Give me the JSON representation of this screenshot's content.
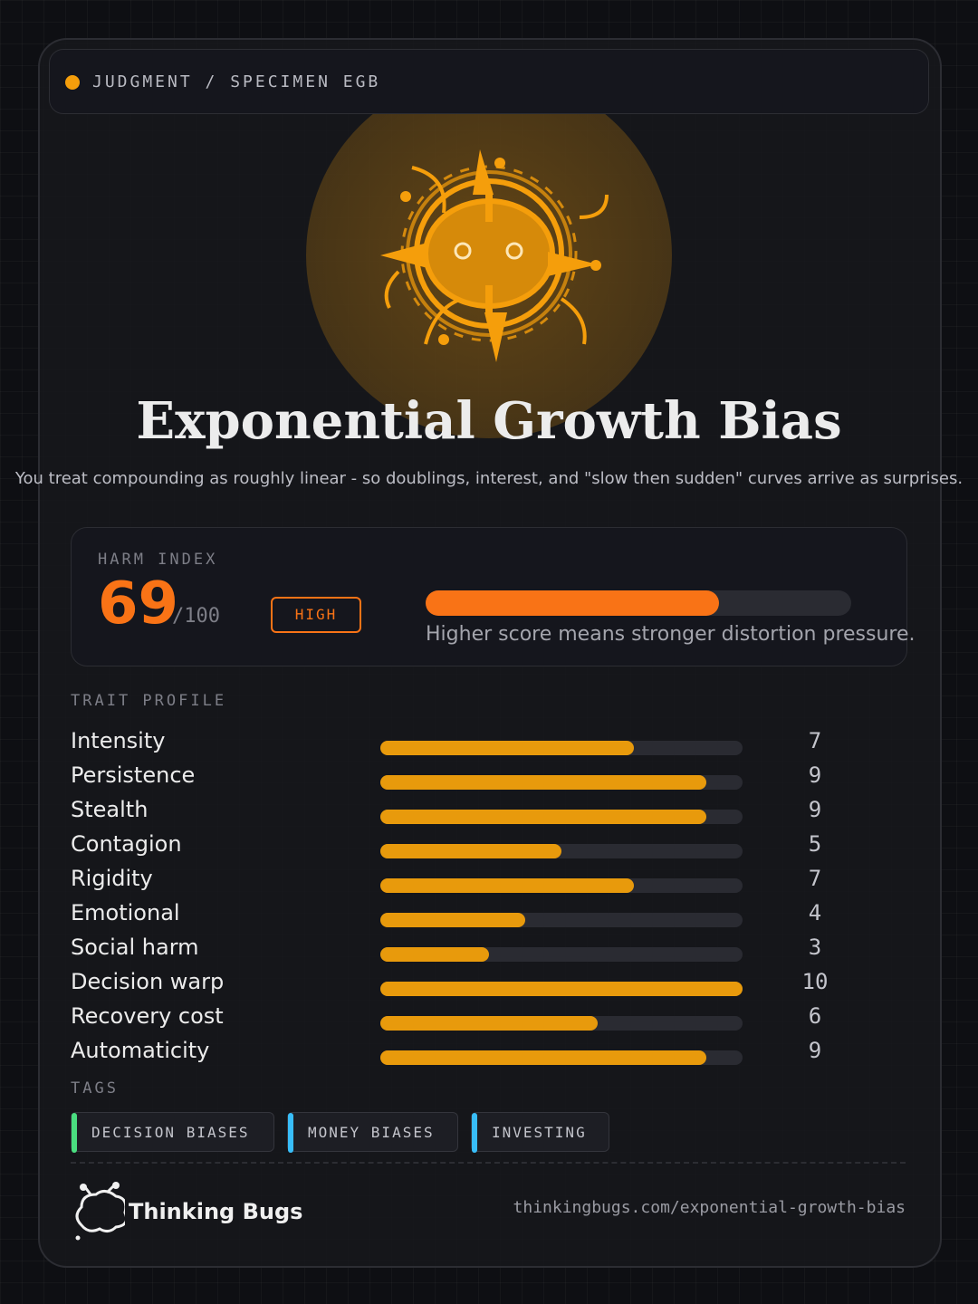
{
  "header": {
    "label": "JUDGMENT / SPECIMEN EGB"
  },
  "title": "Exponential Growth Bias",
  "subtitle": "You treat compounding as roughly linear - so doublings, interest, and \"slow then sudden\" curves arrive as surprises.",
  "harm": {
    "label": "HARM INDEX",
    "score": 69,
    "max": {
      "value": 100,
      "label": "/100"
    },
    "level": "HIGH",
    "note": "Higher score means stronger distortion pressure.",
    "color": "#f97316"
  },
  "traits": {
    "label": "TRAIT PROFILE",
    "xlim": [
      0,
      10
    ],
    "color": "#e89a0c",
    "items": [
      {
        "name": "Intensity",
        "value": 7
      },
      {
        "name": "Persistence",
        "value": 9
      },
      {
        "name": "Stealth",
        "value": 9
      },
      {
        "name": "Contagion",
        "value": 5
      },
      {
        "name": "Rigidity",
        "value": 7
      },
      {
        "name": "Emotional",
        "value": 4
      },
      {
        "name": "Social harm",
        "value": 3
      },
      {
        "name": "Decision warp",
        "value": 10
      },
      {
        "name": "Recovery cost",
        "value": 6
      },
      {
        "name": "Automaticity",
        "value": 9
      }
    ]
  },
  "tags": {
    "label": "TAGS",
    "items": [
      {
        "label": "DECISION BIASES",
        "color": "#4ade80"
      },
      {
        "label": "MONEY BIASES",
        "color": "#38bdf8"
      },
      {
        "label": "INVESTING",
        "color": "#38bdf8"
      }
    ]
  },
  "footer": {
    "brand": "Thinking Bugs",
    "url": "thinkingbugs.com/exponential-growth-bias"
  }
}
